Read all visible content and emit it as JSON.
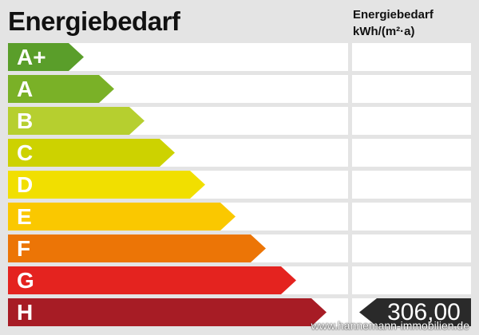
{
  "header": {
    "title": "Energiebedarf",
    "column_title_line1": "Energiebedarf",
    "column_title_line2": "kWh/(m²·a)"
  },
  "classes": [
    {
      "label": "A+",
      "color": "#5a9e2a"
    },
    {
      "label": "A",
      "color": "#7ab127"
    },
    {
      "label": "B",
      "color": "#b6cf2f"
    },
    {
      "label": "C",
      "color": "#cdd200"
    },
    {
      "label": "D",
      "color": "#f1df00"
    },
    {
      "label": "E",
      "color": "#fac800"
    },
    {
      "label": "F",
      "color": "#ec7506"
    },
    {
      "label": "G",
      "color": "#e4231f"
    },
    {
      "label": "H",
      "color": "#a71c25"
    }
  ],
  "current": {
    "class": "H",
    "value": "306,00",
    "marker_color": "#2a2a2a"
  },
  "watermark": "www.hannemann-immobilien.de"
}
